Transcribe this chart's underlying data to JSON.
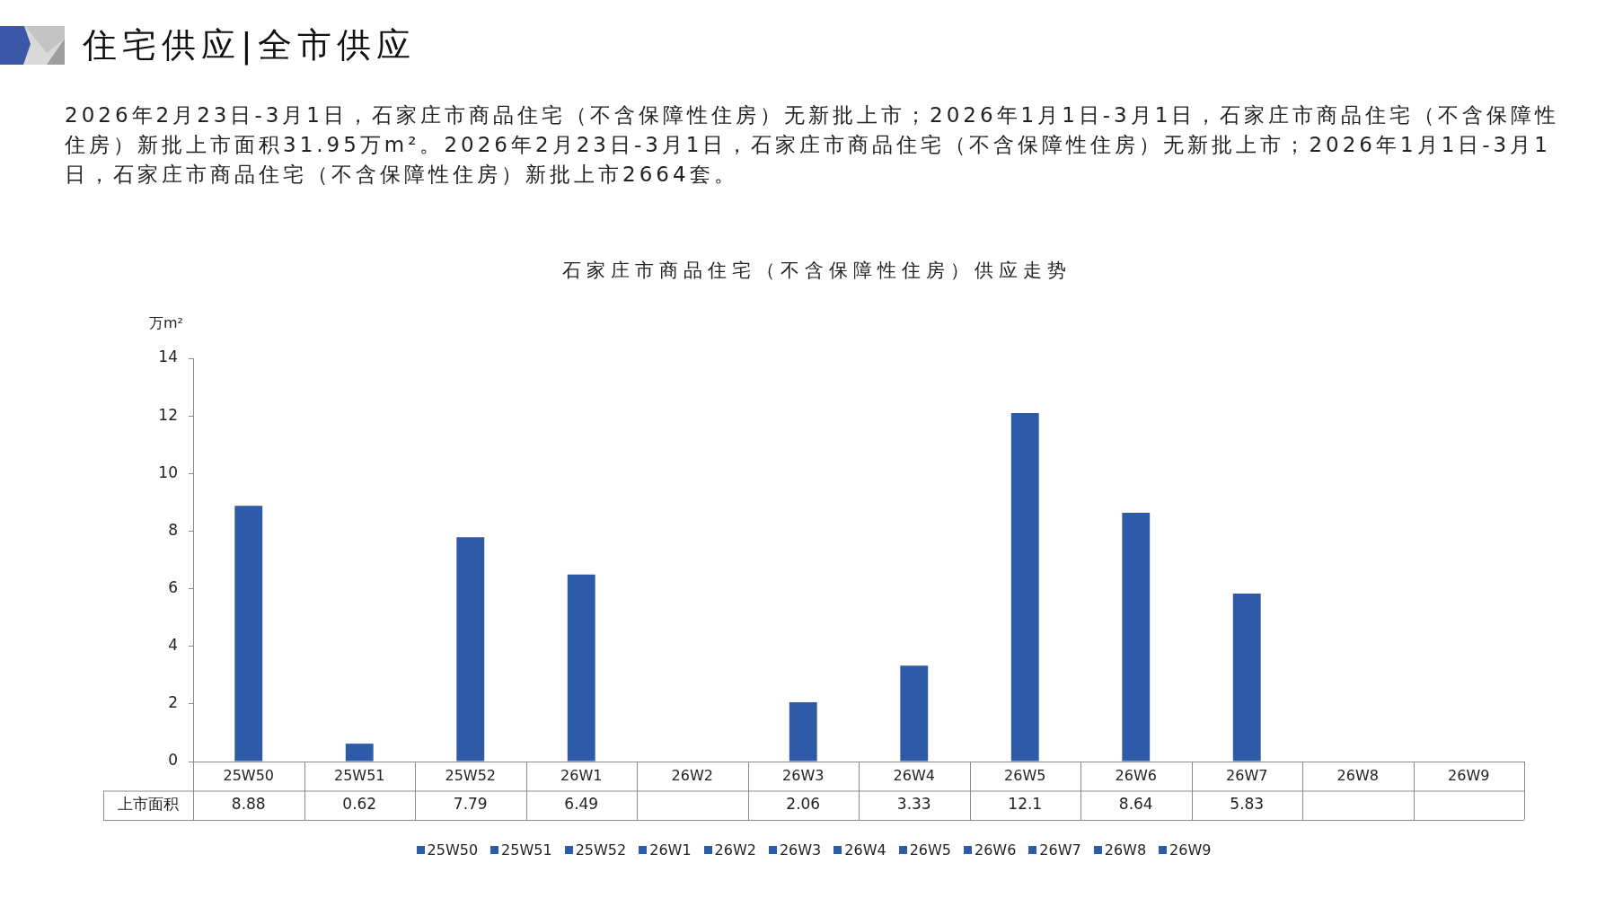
{
  "chart_data": {
    "type": "bar",
    "title": "石家庄市商品住宅（不含保障性住房）供应走势",
    "ylabel": "万m²",
    "annotations": [
      "住宅供应|全市供应",
      "2026年2月23日-3月1日，石家庄市商品住宅（不含保障性住房）无新批上市；2026年1月1日-3月1日，石家庄市商品住宅（不含保障性住房）新批上市面积31.95万m²。2026年2月23日-3月1日，石家庄市商品住宅（不含保障性住房）无新批上市；2026年1月1日-3月1日，石家庄市商品住宅（不含保障性住房）新批上市2664套。"
    ],
    "categories": [
      "25W50",
      "25W51",
      "25W52",
      "26W1",
      "26W2",
      "26W3",
      "26W4",
      "26W5",
      "26W6",
      "26W7",
      "26W8",
      "26W9"
    ],
    "series": [
      {
        "name": "上市面积",
        "color": "#2e5ba8",
        "values": [
          8.88,
          0.62,
          7.79,
          6.49,
          null,
          2.06,
          3.33,
          12.1,
          8.64,
          5.83,
          null,
          null
        ]
      }
    ],
    "ylim": [
      0,
      14
    ],
    "yticks": [
      0,
      2,
      4,
      6,
      8,
      10,
      12,
      14
    ],
    "grid": false,
    "legend": "bottom",
    "data_labels": true
  }
}
